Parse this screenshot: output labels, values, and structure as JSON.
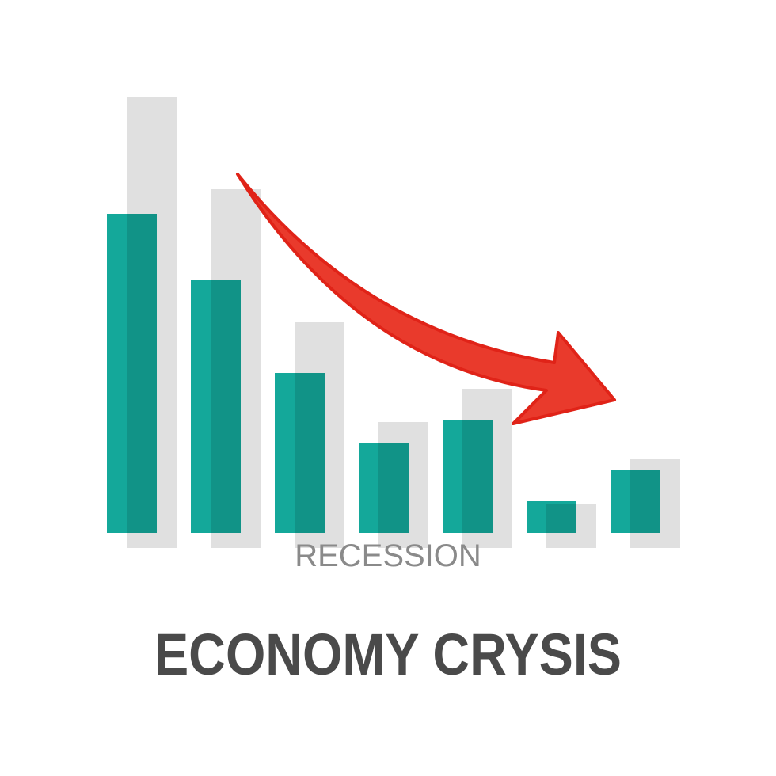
{
  "chart_data": {
    "type": "bar",
    "title": "ECONOMY CRYSIS",
    "subtitle": "RECESSION",
    "categories": [
      null,
      null,
      null,
      null,
      null,
      null,
      null
    ],
    "series": [
      {
        "color": "#14a89a",
        "values": [
          403,
          320,
          202,
          113,
          143,
          40,
          79
        ]
      },
      {
        "color": "#000000",
        "values": [
          570,
          453,
          285,
          159,
          201,
          56,
          112
        ]
      }
    ],
    "ylim": [
      0,
      600
    ]
  }
}
